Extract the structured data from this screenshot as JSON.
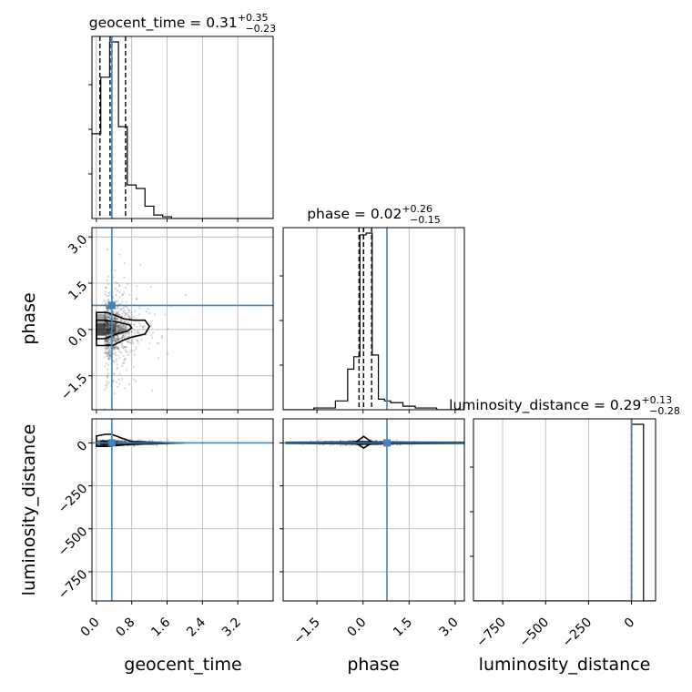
{
  "chart_data": {
    "type": "corner",
    "parameters": [
      "geocent_time",
      "phase",
      "luminosity_distance"
    ],
    "truths": {
      "geocent_time": 0.35,
      "phase": 0.78,
      "luminosity_distance": 0.0
    },
    "titles": [
      {
        "name": "geocent_time",
        "median": "0.31",
        "plus": "+0.35",
        "minus": "−0.23"
      },
      {
        "name": "phase",
        "median": "0.02",
        "plus": "+0.26",
        "minus": "−0.15"
      },
      {
        "name": "luminosity_distance",
        "median": "0.29",
        "plus": "+0.13",
        "minus": "−0.28"
      }
    ],
    "ranges": {
      "geocent_time": [
        -0.1,
        4.0
      ],
      "phase": [
        -2.6,
        3.3
      ],
      "luminosity_distance": [
        -920,
        140
      ]
    },
    "ticks": {
      "geocent_time": [
        0.0,
        0.8,
        1.6,
        2.4,
        3.2
      ],
      "phase": [
        -1.5,
        0.0,
        1.5,
        3.0
      ],
      "luminosity_distance": [
        -750,
        -500,
        -250,
        0
      ]
    },
    "tick_labels": {
      "geocent_time": [
        "0.0",
        "0.8",
        "1.6",
        "2.4",
        "3.2"
      ],
      "phase": [
        "−1.5",
        "0.0",
        "1.5",
        "3.0"
      ],
      "luminosity_distance": [
        "−750",
        "−500",
        "−250",
        "0"
      ]
    },
    "histograms": {
      "geocent_time": {
        "edges": [
          -0.1,
          0.1,
          0.3,
          0.5,
          0.7,
          0.9,
          1.1,
          1.3,
          1.5,
          1.7,
          1.9,
          4.0
        ],
        "counts": [
          0.48,
          0.8,
          1.0,
          0.52,
          0.19,
          0.17,
          0.07,
          0.02,
          0.01,
          0.0,
          0.0
        ],
        "quantiles": [
          0.08,
          0.31,
          0.66
        ]
      },
      "phase": {
        "edges": [
          -2.6,
          -1.6,
          -0.9,
          -0.5,
          -0.3,
          -0.1,
          0.1,
          0.3,
          0.5,
          0.7,
          0.9,
          1.3,
          1.7,
          2.4,
          3.3
        ],
        "counts": [
          0.0,
          0.01,
          0.05,
          0.23,
          0.3,
          0.99,
          1.0,
          0.31,
          0.06,
          0.05,
          0.04,
          0.02,
          0.01,
          0.0
        ],
        "quantiles": [
          -0.13,
          0.02,
          0.28
        ]
      },
      "luminosity_distance": {
        "edges": [
          -920,
          0,
          70,
          140
        ],
        "counts": [
          0.0,
          1.0,
          0.0
        ],
        "quantiles": [
          0.01,
          0.29,
          0.42
        ]
      }
    },
    "grid": true
  }
}
